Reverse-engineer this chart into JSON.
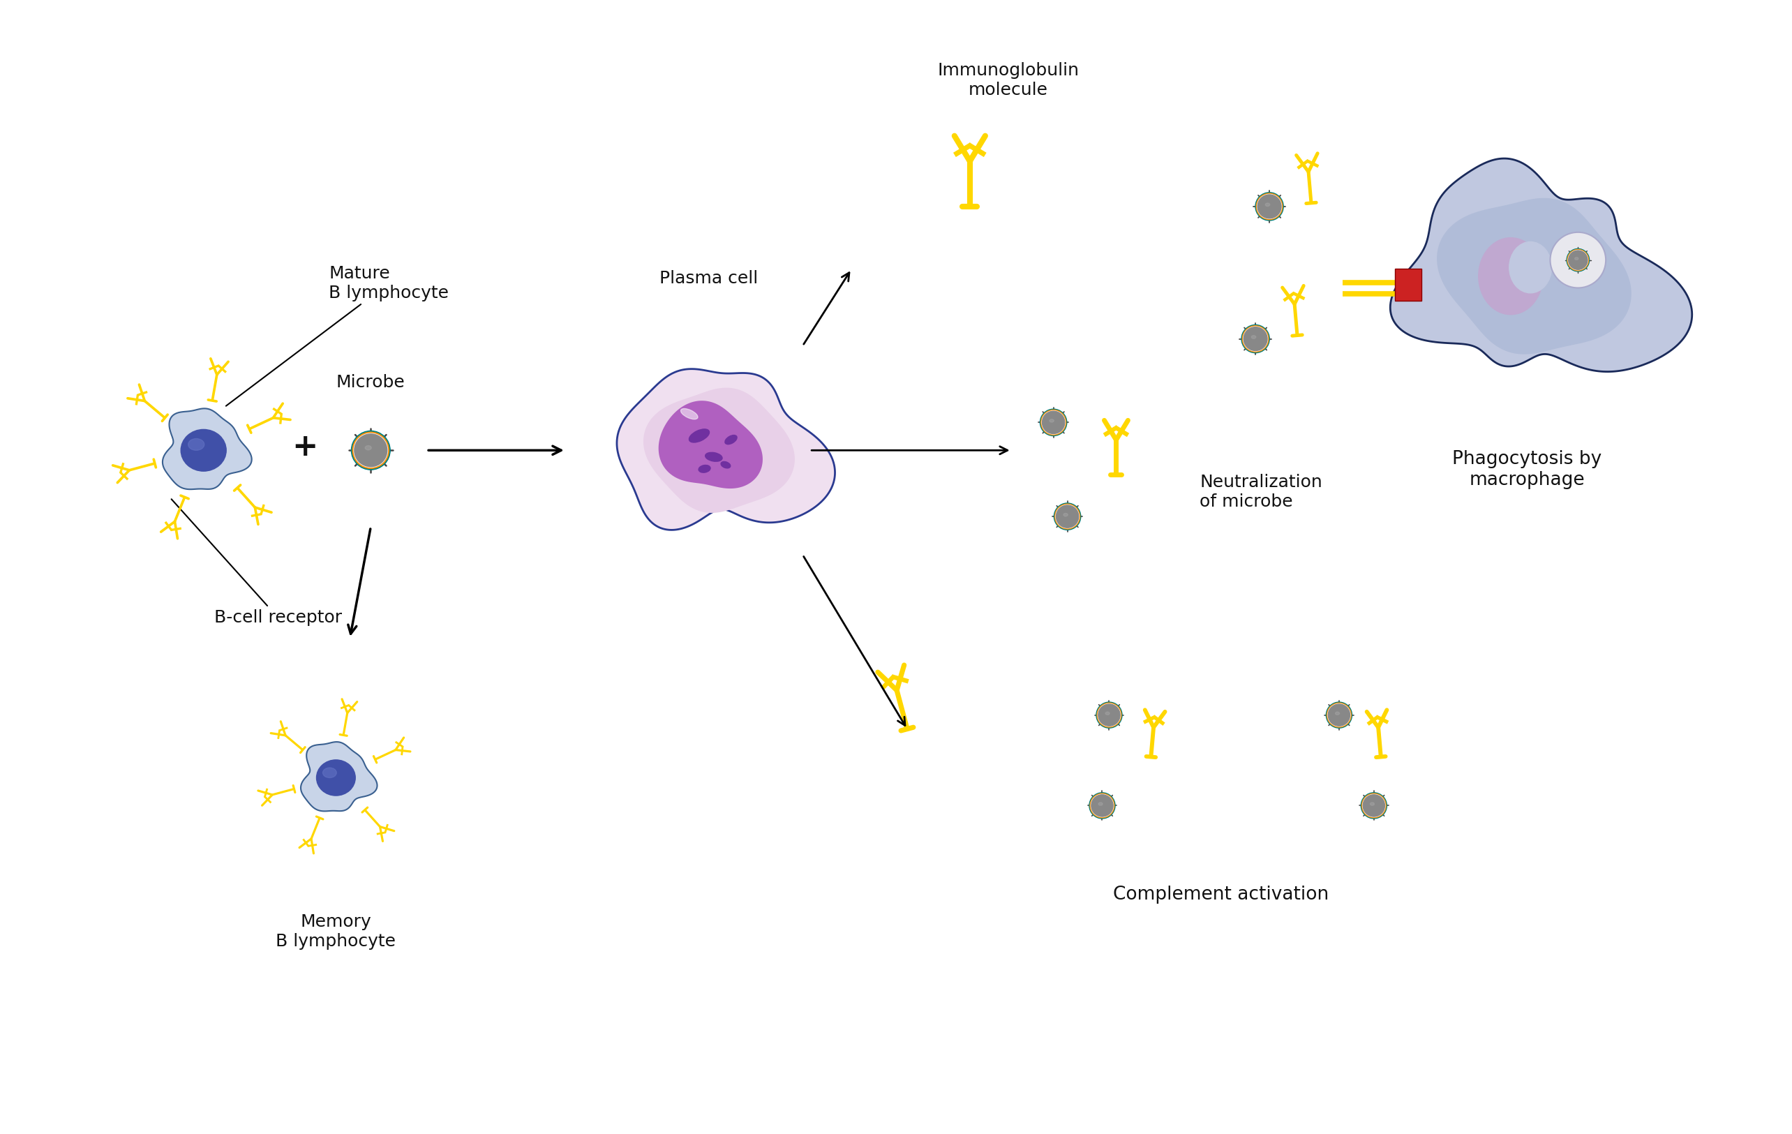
{
  "bg_color": "#ffffff",
  "antibody_color": "#FFD700",
  "bcell_amoeba": "#c8d4e8",
  "bcell_amoeba_outline": "#3a6090",
  "bcell_nucleus": "#4050a8",
  "plasma_outer": "#f0e0f0",
  "plasma_outline": "#2a3a90",
  "plasma_inner": "#e8d0e8",
  "plasma_nuc": "#b060c0",
  "plasma_chromatin": "#7030a0",
  "mac_body": "#c0c8e0",
  "mac_outline": "#1a2a5a",
  "mac_inner": "#b0bcd8",
  "mac_nuc": "#c0a8d0",
  "mac_phago_bg": "#e8e8ee",
  "mac_phago_edge": "#aaaacc",
  "microbe_body": "#888888",
  "microbe_teal": "#008080",
  "microbe_orange": "#FF8C00",
  "microbe_spike": "#444444",
  "red_connector": "#CC2222",
  "arrow_color": "#111111",
  "text_color": "#111111",
  "label_mature_b": "Mature\nB lymphocyte",
  "label_microbe": "Microbe",
  "label_plasma": "Plasma cell",
  "label_receptor": "B-cell receptor",
  "label_immunoglobulin": "Immunoglobulin\nmolecule",
  "label_phagocytosis": "Phagocytosis by\nmacrophage",
  "label_neutralization": "Neutralization\nof microbe",
  "label_memory": "Memory\nB lymphocyte",
  "label_complement": "Complement activation",
  "fontsize": 18
}
